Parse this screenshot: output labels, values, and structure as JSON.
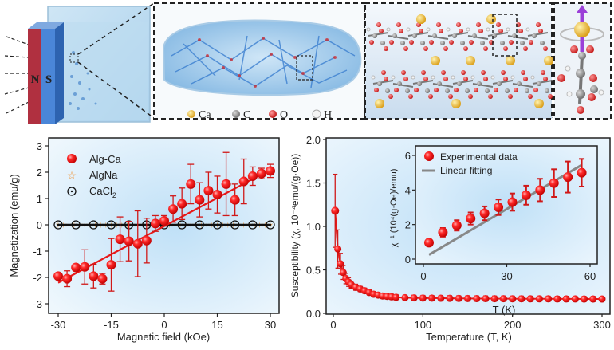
{
  "figure": {
    "top": {
      "magnet_labels": {
        "north": "N",
        "south": "S"
      },
      "legend": [
        {
          "label": "Ca",
          "color": "#e8b321"
        },
        {
          "label": "C",
          "color": "#8a8a8a"
        },
        {
          "label": "O",
          "color": "#d62020"
        },
        {
          "label": "H",
          "color": "#eeeeee"
        }
      ],
      "colors": {
        "magnet_north": "#c94050",
        "magnet_south": "#4a86d8",
        "spin_arrow": "#9b3fd8",
        "ca_atom": "#e8b321",
        "o_atom": "#d62020",
        "c_atom": "#8a8a8a",
        "h_atom": "#f0f0f0"
      }
    }
  },
  "chart_data": [
    {
      "type": "scatter",
      "title": "",
      "xlabel": "Magnetic field (kOe)",
      "ylabel": "Magnetization (emu/g)",
      "xlim": [
        -33,
        33
      ],
      "ylim": [
        -3.3,
        3.3
      ],
      "xticks": [
        "-30",
        "-15",
        "0",
        "15",
        "30"
      ],
      "xtick_values": [
        -30,
        -15,
        0,
        15,
        30
      ],
      "yticks": [
        "-3",
        "-2",
        "-1",
        "0",
        "1",
        "2",
        "3"
      ],
      "ytick_values": [
        -3,
        -2,
        -1,
        0,
        1,
        2,
        3
      ],
      "legend_position": "top-left",
      "series": [
        {
          "name": "Alg-Ca",
          "marker": "filled-circle",
          "color": "#e81818",
          "x": [
            -30,
            -27.5,
            -25,
            -22.5,
            -20,
            -17.5,
            -15,
            -12.5,
            -10,
            -7.5,
            -5,
            -2.5,
            0,
            2.5,
            5,
            7.5,
            10,
            12.5,
            15,
            17.5,
            20,
            22.5,
            25,
            27.5,
            30
          ],
          "y": [
            -1.95,
            -2.05,
            -1.62,
            -1.6,
            -1.95,
            -2.05,
            -1.52,
            -0.55,
            -0.62,
            -0.72,
            -0.6,
            0.05,
            0.15,
            0.6,
            0.8,
            1.55,
            0.95,
            1.3,
            1.15,
            1.55,
            0.95,
            1.65,
            1.85,
            1.95,
            2.05
          ],
          "yerr": [
            0.1,
            0.3,
            0.1,
            0.65,
            0.45,
            0.2,
            1.0,
            0.85,
            0.75,
            1.25,
            0.85,
            0.3,
            0.2,
            0.5,
            0.6,
            0.75,
            0.65,
            0.7,
            0.7,
            1.2,
            0.6,
            0.85,
            0.35,
            0.2,
            0.25
          ],
          "fit": {
            "x": [
              -30,
              30
            ],
            "y": [
              -2.2,
              2.1
            ]
          }
        },
        {
          "name": "AlgNa",
          "marker": "open-star",
          "color": "#f0963c",
          "x_range": [
            -30,
            30
          ],
          "y_constant": 0.0
        },
        {
          "name": "CaCl2",
          "marker": "open-circle-dot",
          "color": "#111111",
          "x": [
            -30,
            -25,
            -20,
            -15,
            -10,
            -5,
            0,
            5,
            10,
            15,
            20,
            25,
            30
          ],
          "y": [
            0,
            0,
            0,
            0,
            0,
            0,
            0,
            0,
            0,
            0,
            0,
            0,
            0
          ]
        }
      ],
      "legend": [
        {
          "label": "Alg-Ca"
        },
        {
          "label": "AlgNa"
        },
        {
          "label": "CaCl",
          "sub": "2"
        }
      ]
    },
    {
      "type": "scatter",
      "title": "",
      "xlabel": "Temperature (T, K)",
      "ylabel": "Susceptibility (χ, 10⁻⁴emu/(g·Oe))",
      "xlim": [
        -8,
        308
      ],
      "ylim": [
        0,
        2.0
      ],
      "xticks": [
        "0",
        "100",
        "200",
        "300"
      ],
      "xtick_values": [
        0,
        100,
        200,
        300
      ],
      "yticks": [
        "0.0",
        "0.5",
        "1.0",
        "1.5",
        "2.0"
      ],
      "ytick_values": [
        0,
        0.5,
        1.0,
        1.5,
        2.0
      ],
      "series": [
        {
          "name": "Susceptibility",
          "marker": "filled-circle",
          "color": "#e81818",
          "x": [
            2,
            5,
            8,
            11,
            14,
            17,
            20,
            25,
            30,
            35,
            40,
            45,
            50,
            55,
            60,
            65,
            70,
            80,
            90,
            100,
            110,
            120,
            130,
            140,
            150,
            160,
            170,
            180,
            190,
            200,
            210,
            220,
            230,
            240,
            250,
            260,
            270,
            280,
            290,
            300
          ],
          "y": [
            1.18,
            0.74,
            0.57,
            0.47,
            0.4,
            0.36,
            0.33,
            0.3,
            0.28,
            0.26,
            0.24,
            0.22,
            0.21,
            0.2,
            0.195,
            0.19,
            0.185,
            0.18,
            0.178,
            0.176,
            0.175,
            0.174,
            0.173,
            0.172,
            0.171,
            0.17,
            0.17,
            0.169,
            0.169,
            0.168,
            0.168,
            0.167,
            0.167,
            0.167,
            0.166,
            0.166,
            0.166,
            0.165,
            0.165,
            0.165
          ],
          "yerr": [
            0.42,
            0.22,
            0.12,
            0.08,
            0.06,
            0.05,
            0.04,
            0.035,
            0.03,
            0.03,
            0.03,
            0.03,
            0.03,
            0.03,
            0.03,
            0.03,
            0.03,
            0.03,
            0.03,
            0.03,
            0.03,
            0.03,
            0.03,
            0.03,
            0.03,
            0.03,
            0.03,
            0.03,
            0.03,
            0.03,
            0.03,
            0.03,
            0.03,
            0.03,
            0.03,
            0.03,
            0.03,
            0.03,
            0.03,
            0.03
          ]
        }
      ]
    },
    {
      "type": "scatter",
      "title": "inset",
      "xlabel": "T (K)",
      "ylabel": "χ⁻¹ (10⁴(g·Oe)/emu)",
      "xlim": [
        -3,
        62
      ],
      "ylim": [
        -0.3,
        6.5
      ],
      "xticks": [
        "0",
        "30",
        "60"
      ],
      "xtick_values": [
        0,
        30,
        60
      ],
      "yticks": [
        "0",
        "2",
        "4",
        "6"
      ],
      "ytick_values": [
        0,
        2,
        4,
        6
      ],
      "legend_position": "top-left",
      "series": [
        {
          "name": "Experimental data",
          "marker": "filled-circle",
          "color": "#e81818",
          "x": [
            2,
            7,
            12,
            17,
            22,
            27,
            32,
            37,
            42,
            47,
            52,
            57
          ],
          "y": [
            0.95,
            1.55,
            1.95,
            2.35,
            2.65,
            3.0,
            3.3,
            3.7,
            4.0,
            4.4,
            4.75,
            5.0
          ],
          "yerr": [
            0.2,
            0.25,
            0.3,
            0.35,
            0.4,
            0.45,
            0.5,
            0.55,
            0.65,
            0.8,
            0.9,
            0.8
          ]
        },
        {
          "name": "Linear fitting",
          "marker": "line",
          "color": "#888888",
          "fit": {
            "x": [
              2,
              57
            ],
            "y": [
              0.25,
              5.45
            ]
          }
        }
      ],
      "legend": [
        {
          "label": "Experimental data"
        },
        {
          "label": "Linear fitting"
        }
      ]
    }
  ]
}
